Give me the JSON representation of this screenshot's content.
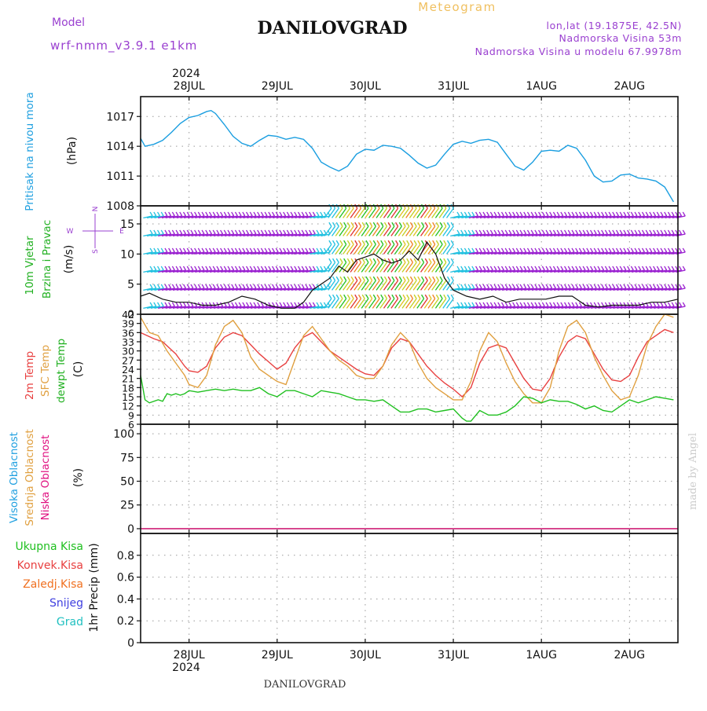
{
  "header": {
    "model_label": "Model",
    "model_name": "wrf-nmm_v3.9.1  e1km",
    "meteogram_label": "Meteogram",
    "station": "DANILOVGRAD",
    "coords": "lon,lat (19.1875E, 42.5N)",
    "elevation": "Nadmorska Visina 53m",
    "model_elevation": "Nadmorska Visina u modelu 67.9978m",
    "year": "2024",
    "footer_station": "DANILOVGRAD",
    "credit": "made by Angel"
  },
  "colors": {
    "pressure": "#1a9ee0",
    "temp2m": "#e84040",
    "sfc_temp": "#e0a040",
    "dewpoint": "#20c020",
    "label_purple": "#9a40d0",
    "meteogram_gold": "#f0c060",
    "high_cloud": "#20a0e0",
    "mid_cloud": "#e0a040",
    "low_cloud": "#e01080"
  },
  "panel_labels": {
    "pressure": "Pritisak na nivou mora",
    "pressure_unit": "(hPa)",
    "wind_line1": "10m Vjetar",
    "wind_line2": "Brzina i Pravac",
    "wind_unit": "(m/s)",
    "compass_n": "N",
    "compass_s": "S",
    "compass_e": "E",
    "compass_w": "W",
    "temp_2m": "2m Temp",
    "temp_sfc": "SFC Temp",
    "temp_dew": "dewpt Temp",
    "temp_unit": "(C)",
    "cloud_high": "Visoka Oblacnost",
    "cloud_mid": "Srednja Oblacnost",
    "cloud_low": "Niska Oblacnost",
    "cloud_unit": "(%)",
    "precip_unit": "1hr Precip (mm)",
    "precip_legend": [
      {
        "label": "Ukupna Kisa",
        "color": "#20c020"
      },
      {
        "label": "Konvek.Kisa",
        "color": "#e84040"
      },
      {
        "label": "Zaledj.Kisa",
        "color": "#f07020"
      },
      {
        "label": "Snijeg",
        "color": "#4040e0"
      },
      {
        "label": "Grad",
        "color": "#20c0c0"
      }
    ]
  },
  "chart_data": [
    {
      "type": "line",
      "panel": "pressure",
      "x_ticks": [
        "28JUL",
        "29JUL",
        "30JUL",
        "31JUL",
        "1AUG",
        "2AUG"
      ],
      "x_range_days": [
        -0.55,
        5.55
      ],
      "ylim": [
        1008,
        1019
      ],
      "yticks": [
        1008,
        1011,
        1014,
        1017
      ],
      "grid": true,
      "series": [
        {
          "key": "pressure",
          "x": [
            -0.55,
            -0.5,
            -0.4,
            -0.3,
            -0.2,
            -0.1,
            0,
            0.1,
            0.2,
            0.25,
            0.3,
            0.4,
            0.5,
            0.6,
            0.7,
            0.8,
            0.9,
            1.0,
            1.1,
            1.2,
            1.3,
            1.4,
            1.5,
            1.6,
            1.7,
            1.8,
            1.9,
            2.0,
            2.1,
            2.2,
            2.3,
            2.4,
            2.5,
            2.6,
            2.7,
            2.8,
            2.9,
            3.0,
            3.1,
            3.2,
            3.3,
            3.4,
            3.5,
            3.6,
            3.7,
            3.8,
            3.9,
            4.0,
            4.1,
            4.2,
            4.3,
            4.4,
            4.5,
            4.6,
            4.7,
            4.8,
            4.9,
            5.0,
            5.1,
            5.2,
            5.3,
            5.4,
            5.5
          ],
          "y": [
            1014.8,
            1014.0,
            1014.2,
            1014.6,
            1015.4,
            1016.3,
            1016.9,
            1017.1,
            1017.5,
            1017.6,
            1017.3,
            1016.2,
            1015.0,
            1014.3,
            1014.0,
            1014.6,
            1015.1,
            1015.0,
            1014.7,
            1014.9,
            1014.7,
            1013.8,
            1012.4,
            1011.9,
            1011.5,
            1012.0,
            1013.2,
            1013.7,
            1013.6,
            1014.1,
            1014.0,
            1013.8,
            1013.1,
            1012.3,
            1011.8,
            1012.1,
            1013.2,
            1014.2,
            1014.5,
            1014.3,
            1014.6,
            1014.7,
            1014.4,
            1013.2,
            1012.0,
            1011.6,
            1012.4,
            1013.5,
            1013.6,
            1013.5,
            1014.1,
            1013.8,
            1012.6,
            1011.0,
            1010.4,
            1010.5,
            1011.1,
            1011.2,
            1010.8,
            1010.7,
            1010.5,
            1009.9,
            1008.4
          ]
        }
      ]
    },
    {
      "type": "barbs",
      "panel": "wind",
      "ylim": [
        0,
        18
      ],
      "yticks": [
        0,
        5,
        10,
        15
      ],
      "grid": true,
      "speed_line": {
        "x": [
          -0.55,
          -0.45,
          -0.3,
          -0.15,
          0,
          0.15,
          0.3,
          0.45,
          0.6,
          0.75,
          0.9,
          1.05,
          1.2,
          1.3,
          1.4,
          1.5,
          1.6,
          1.7,
          1.8,
          1.9,
          2.0,
          2.1,
          2.2,
          2.3,
          2.4,
          2.5,
          2.6,
          2.7,
          2.8,
          2.9,
          3.0,
          3.15,
          3.3,
          3.45,
          3.6,
          3.75,
          3.9,
          4.05,
          4.2,
          4.35,
          4.5,
          4.65,
          4.8,
          4.95,
          5.1,
          5.25,
          5.4,
          5.55
        ],
        "y": [
          3,
          3.5,
          2.5,
          2,
          2,
          1.5,
          1.5,
          2,
          3,
          2.5,
          1.5,
          1,
          1,
          2,
          4,
          5,
          6,
          8,
          7,
          9,
          9.5,
          10,
          9,
          8.5,
          9,
          10.5,
          9,
          12,
          10,
          6,
          4,
          3,
          2.5,
          3,
          2,
          2.5,
          2.5,
          2.5,
          3,
          3,
          1.5,
          1.2,
          1.5,
          1.5,
          1.5,
          2,
          2,
          2.5
        ]
      }
    },
    {
      "type": "line",
      "panel": "temperature",
      "ylim": [
        6,
        42
      ],
      "yticks": [
        6,
        9,
        12,
        15,
        18,
        21,
        24,
        27,
        30,
        33,
        36,
        39,
        42
      ],
      "grid": true,
      "series": [
        {
          "key": "temp2m",
          "x": [
            -0.55,
            -0.4,
            -0.3,
            -0.15,
            -0.05,
            0,
            0.1,
            0.2,
            0.3,
            0.4,
            0.5,
            0.6,
            0.7,
            0.8,
            0.9,
            1.0,
            1.1,
            1.2,
            1.3,
            1.4,
            1.5,
            1.6,
            1.7,
            1.8,
            1.9,
            2.0,
            2.1,
            2.2,
            2.3,
            2.4,
            2.5,
            2.6,
            2.7,
            2.8,
            2.9,
            3.0,
            3.1,
            3.2,
            3.3,
            3.4,
            3.5,
            3.6,
            3.7,
            3.8,
            3.9,
            4.0,
            4.1,
            4.2,
            4.3,
            4.4,
            4.5,
            4.6,
            4.7,
            4.8,
            4.9,
            5.0,
            5.1,
            5.2,
            5.3,
            5.4,
            5.5
          ],
          "y": [
            36,
            34,
            33,
            29,
            25,
            23.5,
            23,
            25,
            31,
            34.5,
            36,
            35,
            32,
            29,
            26.5,
            24,
            26,
            31,
            34.5,
            36,
            33,
            30,
            28,
            26,
            24,
            22.5,
            22,
            25,
            31,
            34,
            33,
            29,
            25,
            22,
            19.5,
            17.5,
            15,
            18,
            26,
            31,
            32,
            31,
            26,
            21,
            17.5,
            17,
            21,
            28,
            33,
            35,
            34,
            29,
            24,
            20.5,
            20,
            22,
            28,
            33,
            35,
            37,
            36
          ]
        },
        {
          "key": "sfc_temp",
          "x": [
            -0.55,
            -0.45,
            -0.35,
            -0.25,
            -0.15,
            -0.05,
            0,
            0.1,
            0.2,
            0.3,
            0.4,
            0.5,
            0.6,
            0.7,
            0.8,
            0.9,
            1.0,
            1.1,
            1.2,
            1.3,
            1.4,
            1.5,
            1.6,
            1.7,
            1.8,
            1.9,
            2.0,
            2.1,
            2.2,
            2.3,
            2.4,
            2.5,
            2.6,
            2.7,
            2.8,
            2.9,
            3.0,
            3.1,
            3.2,
            3.3,
            3.4,
            3.5,
            3.6,
            3.7,
            3.8,
            3.9,
            4.0,
            4.1,
            4.2,
            4.3,
            4.4,
            4.5,
            4.6,
            4.7,
            4.8,
            4.9,
            5.0,
            5.1,
            5.2,
            5.3,
            5.4,
            5.5
          ],
          "y": [
            41,
            36,
            35,
            30,
            26,
            22,
            19,
            18,
            22,
            32,
            38,
            40,
            36,
            28,
            24,
            22,
            20,
            19,
            27,
            35,
            38,
            34,
            30,
            27,
            25,
            22,
            21,
            21,
            25,
            32,
            36,
            33,
            26,
            21,
            18,
            16,
            14,
            14,
            20,
            30,
            36,
            33,
            26,
            20,
            16,
            13,
            13,
            18,
            30,
            38,
            40,
            36,
            28,
            22,
            17,
            14,
            15,
            22,
            32,
            38,
            42,
            41
          ]
        },
        {
          "key": "dewpoint",
          "x": [
            -0.55,
            -0.5,
            -0.45,
            -0.35,
            -0.3,
            -0.25,
            -0.2,
            -0.15,
            -0.1,
            -0.05,
            0,
            0.1,
            0.2,
            0.3,
            0.4,
            0.5,
            0.6,
            0.7,
            0.8,
            0.9,
            1.0,
            1.1,
            1.2,
            1.3,
            1.4,
            1.5,
            1.6,
            1.7,
            1.8,
            1.9,
            2.0,
            2.1,
            2.2,
            2.3,
            2.4,
            2.5,
            2.6,
            2.7,
            2.8,
            2.9,
            3.0,
            3.1,
            3.15,
            3.2,
            3.3,
            3.4,
            3.5,
            3.6,
            3.7,
            3.8,
            3.9,
            4.0,
            4.1,
            4.2,
            4.3,
            4.4,
            4.5,
            4.6,
            4.7,
            4.8,
            4.9,
            5.0,
            5.1,
            5.2,
            5.3,
            5.4,
            5.5
          ],
          "y": [
            22,
            14,
            13,
            14,
            13.5,
            16,
            15.5,
            16,
            15.5,
            16,
            17,
            16.5,
            17,
            17.5,
            17,
            17.5,
            17,
            17,
            18,
            16,
            15,
            17,
            17,
            16,
            15,
            17,
            16.5,
            16,
            15,
            14,
            14,
            13.5,
            14,
            12,
            10,
            10,
            11,
            11,
            10,
            10.5,
            11,
            8,
            7,
            7,
            10.5,
            9,
            9,
            10,
            12,
            15,
            14.5,
            13,
            14,
            13.5,
            13.5,
            12.5,
            11,
            12,
            10.5,
            10,
            12,
            14,
            13,
            14,
            15,
            14.5,
            14
          ]
        }
      ]
    },
    {
      "type": "line",
      "panel": "cloud",
      "ylim": [
        -5,
        110
      ],
      "yticks": [
        0,
        25,
        50,
        75,
        100
      ],
      "grid": true,
      "series": [
        {
          "key": "high_cloud",
          "x": [
            -0.55,
            5.55
          ],
          "y": [
            0,
            0
          ]
        },
        {
          "key": "mid_cloud",
          "x": [
            -0.55,
            5.55
          ],
          "y": [
            0,
            0
          ]
        },
        {
          "key": "low_cloud",
          "x": [
            -0.55,
            5.55
          ],
          "y": [
            0,
            0
          ]
        }
      ]
    },
    {
      "type": "bar",
      "panel": "precipitation",
      "ylim": [
        0,
        1.0
      ],
      "yticks": [
        0,
        0.2,
        0.4,
        0.6,
        0.8
      ],
      "ytick_labels": [
        "0",
        "0.2",
        "0.4",
        "0.6",
        "0.8"
      ],
      "grid": true,
      "values": []
    }
  ]
}
